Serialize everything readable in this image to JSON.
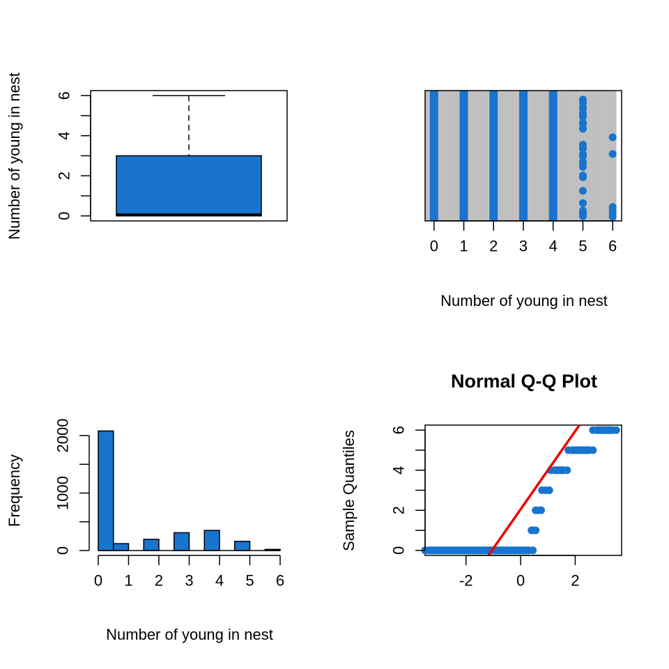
{
  "colors": {
    "fill": "#1874CD",
    "grid": "#BEBEBE",
    "line": "#EE0000",
    "axis": "#000000"
  },
  "chart_data": [
    {
      "id": "boxplot",
      "type": "box",
      "ylabel": "Number of young in nest",
      "yticks": [
        0,
        2,
        4,
        6
      ],
      "ylim": [
        -0.25,
        6.25
      ],
      "stats": {
        "min": 0,
        "q1": 0,
        "median": 0.05,
        "q3": 3,
        "max": 6
      }
    },
    {
      "id": "stripchart",
      "type": "scatter",
      "xlabel": "Number of young in nest",
      "xticks": [
        0,
        1,
        2,
        3,
        4,
        5,
        6
      ],
      "xlim": [
        -0.3,
        6.3
      ],
      "grid": true,
      "values": [
        0,
        1,
        2,
        3,
        4,
        5,
        6
      ]
    },
    {
      "id": "histogram",
      "type": "bar",
      "xlabel": "Number of young in nest",
      "ylabel": "Frequency",
      "xticks": [
        0,
        1,
        2,
        3,
        4,
        5,
        6
      ],
      "yticks": [
        0,
        1000,
        2000
      ],
      "ylim": [
        0,
        2100
      ],
      "bins": [
        {
          "from": 0,
          "to": 0.5,
          "count": 2080
        },
        {
          "from": 0.5,
          "to": 1,
          "count": 120
        },
        {
          "from": 1,
          "to": 1.5,
          "count": 0
        },
        {
          "from": 1.5,
          "to": 2,
          "count": 195
        },
        {
          "from": 2,
          "to": 2.5,
          "count": 0
        },
        {
          "from": 2.5,
          "to": 3,
          "count": 310
        },
        {
          "from": 3,
          "to": 3.5,
          "count": 0
        },
        {
          "from": 3.5,
          "to": 4,
          "count": 350
        },
        {
          "from": 4,
          "to": 4.5,
          "count": 0
        },
        {
          "from": 4.5,
          "to": 5,
          "count": 160
        },
        {
          "from": 5,
          "to": 5.5,
          "count": 0
        },
        {
          "from": 5.5,
          "to": 6,
          "count": 20
        }
      ]
    },
    {
      "id": "qqplot",
      "type": "scatter",
      "title": "Normal Q-Q Plot",
      "ylabel": "Sample Quantiles",
      "xticks": [
        -2,
        0,
        2
      ],
      "yticks": [
        0,
        2,
        4,
        6
      ],
      "xlim": [
        -3.5,
        3.7
      ],
      "ylim": [
        -0.25,
        6.25
      ],
      "groups": [
        {
          "value": 0,
          "from": -3.5,
          "to": 0.45
        },
        {
          "value": 1,
          "from": 0.4,
          "to": 0.55
        },
        {
          "value": 2,
          "from": 0.55,
          "to": 0.75
        },
        {
          "value": 3,
          "from": 0.78,
          "to": 1.05
        },
        {
          "value": 4,
          "from": 1.1,
          "to": 1.7
        },
        {
          "value": 5,
          "from": 1.75,
          "to": 2.65
        },
        {
          "value": 6,
          "from": 2.65,
          "to": 3.5
        }
      ],
      "qqline": {
        "intercept": 2.05,
        "slope": 1.95
      }
    }
  ]
}
